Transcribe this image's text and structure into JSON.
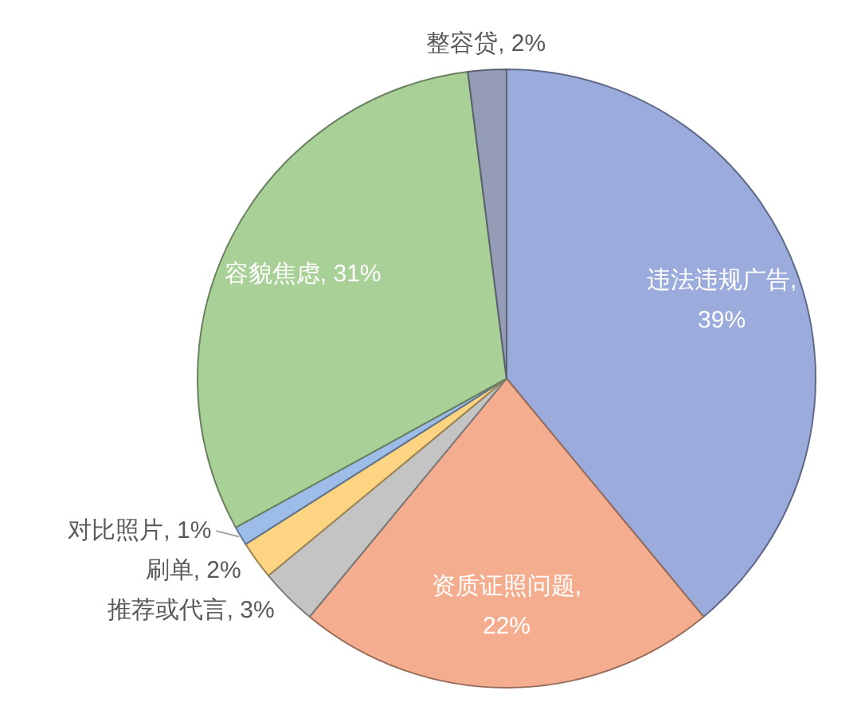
{
  "chart_data": {
    "type": "pie",
    "categories": [
      "违法违规广告",
      "资质证照问题",
      "推荐或代言",
      "刷单",
      "对比照片",
      "容貌焦虑",
      "整容贷"
    ],
    "values": [
      39,
      22,
      3,
      2,
      1,
      31,
      2
    ],
    "colors": [
      "#9aabdc",
      "#f4ae8f",
      "#c4c4c4",
      "#fdd582",
      "#9dbde8",
      "#a9d097",
      "#949db5"
    ],
    "value_labels": [
      ", 39%",
      ", 22%",
      ", 3%",
      ", 2%",
      ", 1%",
      ", 31%",
      ", 2%"
    ]
  }
}
